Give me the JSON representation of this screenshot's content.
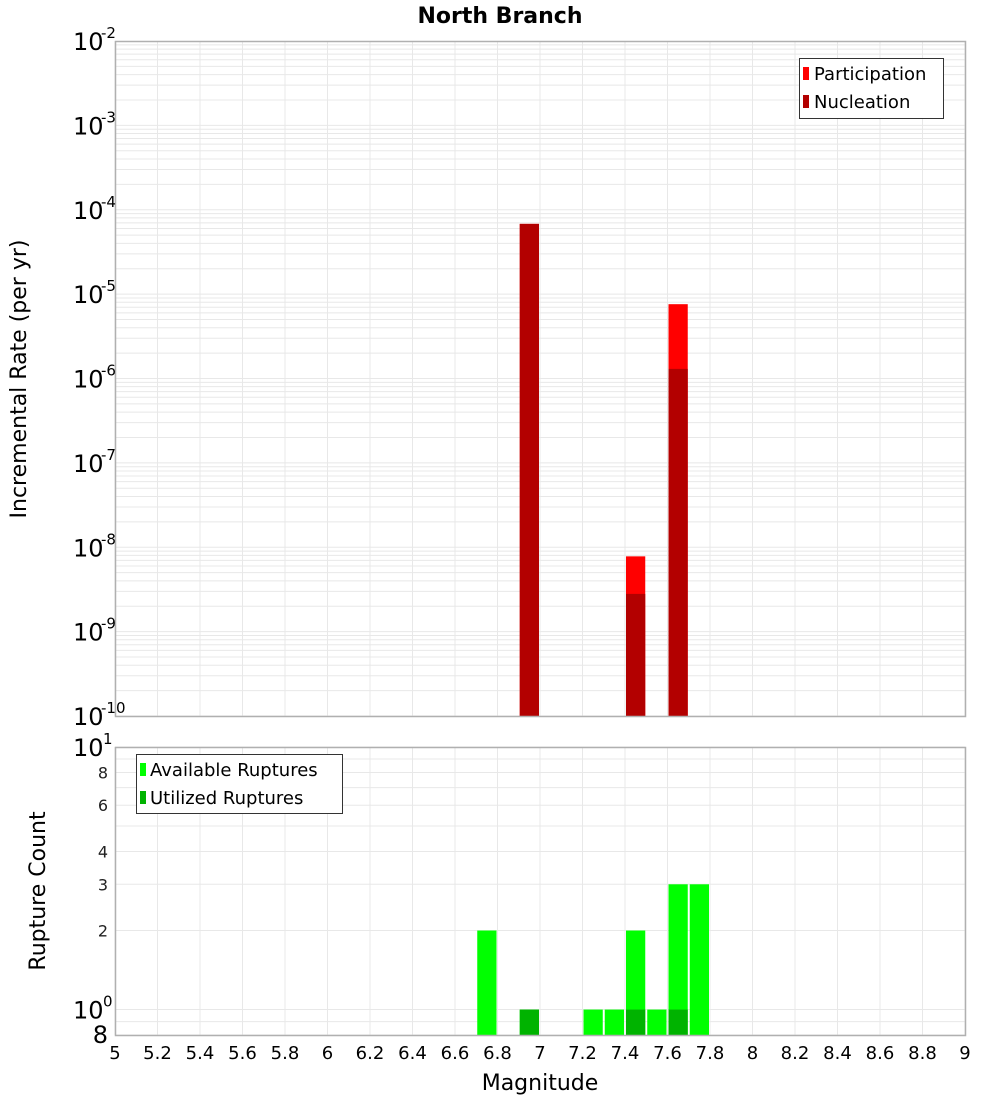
{
  "chart_data": [
    {
      "type": "bar",
      "title": "North Branch",
      "panel": "top",
      "xlabel": "Magnitude",
      "ylabel": "Incremental Rate (per yr)",
      "yscale": "log",
      "ylim": [
        1e-10,
        0.01
      ],
      "xlim": [
        5,
        9
      ],
      "bin_width": 0.1,
      "grid": true,
      "legend_position": "top-right",
      "y_tick_exponents": [
        -2,
        -3,
        -4,
        -5,
        -6,
        -7,
        -8,
        -9,
        -10
      ],
      "series": [
        {
          "name": "Participation",
          "color": "#ff0000",
          "x": [
            6.95,
            7.45,
            7.65
          ],
          "values": [
            6.8e-05,
            7.8e-09,
            7.6e-06
          ]
        },
        {
          "name": "Nucleation",
          "color": "#b30000",
          "x": [
            6.95,
            7.45,
            7.65
          ],
          "values": [
            6.8e-05,
            2.8e-09,
            1.3e-06
          ]
        }
      ]
    },
    {
      "type": "bar",
      "panel": "bottom",
      "xlabel": "Magnitude",
      "ylabel": "Rupture Count",
      "yscale": "log",
      "ylim": [
        0.8,
        10
      ],
      "xlim": [
        5,
        9
      ],
      "bin_width": 0.1,
      "grid": true,
      "legend_position": "top-left",
      "y_tick_labels": [
        "10^1",
        "8",
        "6",
        "4",
        "3",
        "2",
        "10^0",
        "8"
      ],
      "series": [
        {
          "name": "Available Ruptures",
          "color": "#00ff00",
          "x": [
            6.75,
            6.95,
            7.25,
            7.35,
            7.45,
            7.55,
            7.65,
            7.75
          ],
          "values": [
            2,
            1,
            1,
            1,
            2,
            1,
            3,
            3
          ]
        },
        {
          "name": "Utilized Ruptures",
          "color": "#00b300",
          "x": [
            6.95,
            7.45,
            7.65
          ],
          "values": [
            1,
            1,
            1
          ]
        }
      ]
    }
  ],
  "x_ticks": [
    "5",
    "5.2",
    "5.4",
    "5.6",
    "5.8",
    "6",
    "6.2",
    "6.4",
    "6.6",
    "6.8",
    "7",
    "7.2",
    "7.4",
    "7.6",
    "7.8",
    "8",
    "8.2",
    "8.4",
    "8.6",
    "8.8",
    "9"
  ],
  "labels": {
    "title": "North Branch",
    "xlabel": "Magnitude",
    "top_ylabel": "Incremental Rate (per yr)",
    "bottom_ylabel": "Rupture Count",
    "legend_top": [
      "Participation",
      "Nucleation"
    ],
    "legend_bottom": [
      "Available Ruptures",
      "Utilized Ruptures"
    ]
  },
  "colors": {
    "participation": "#ff0000",
    "nucleation": "#b30000",
    "available": "#00ff00",
    "utilized": "#00b300",
    "grid": "#e8e8e8",
    "frame": "#b0b0b0"
  }
}
